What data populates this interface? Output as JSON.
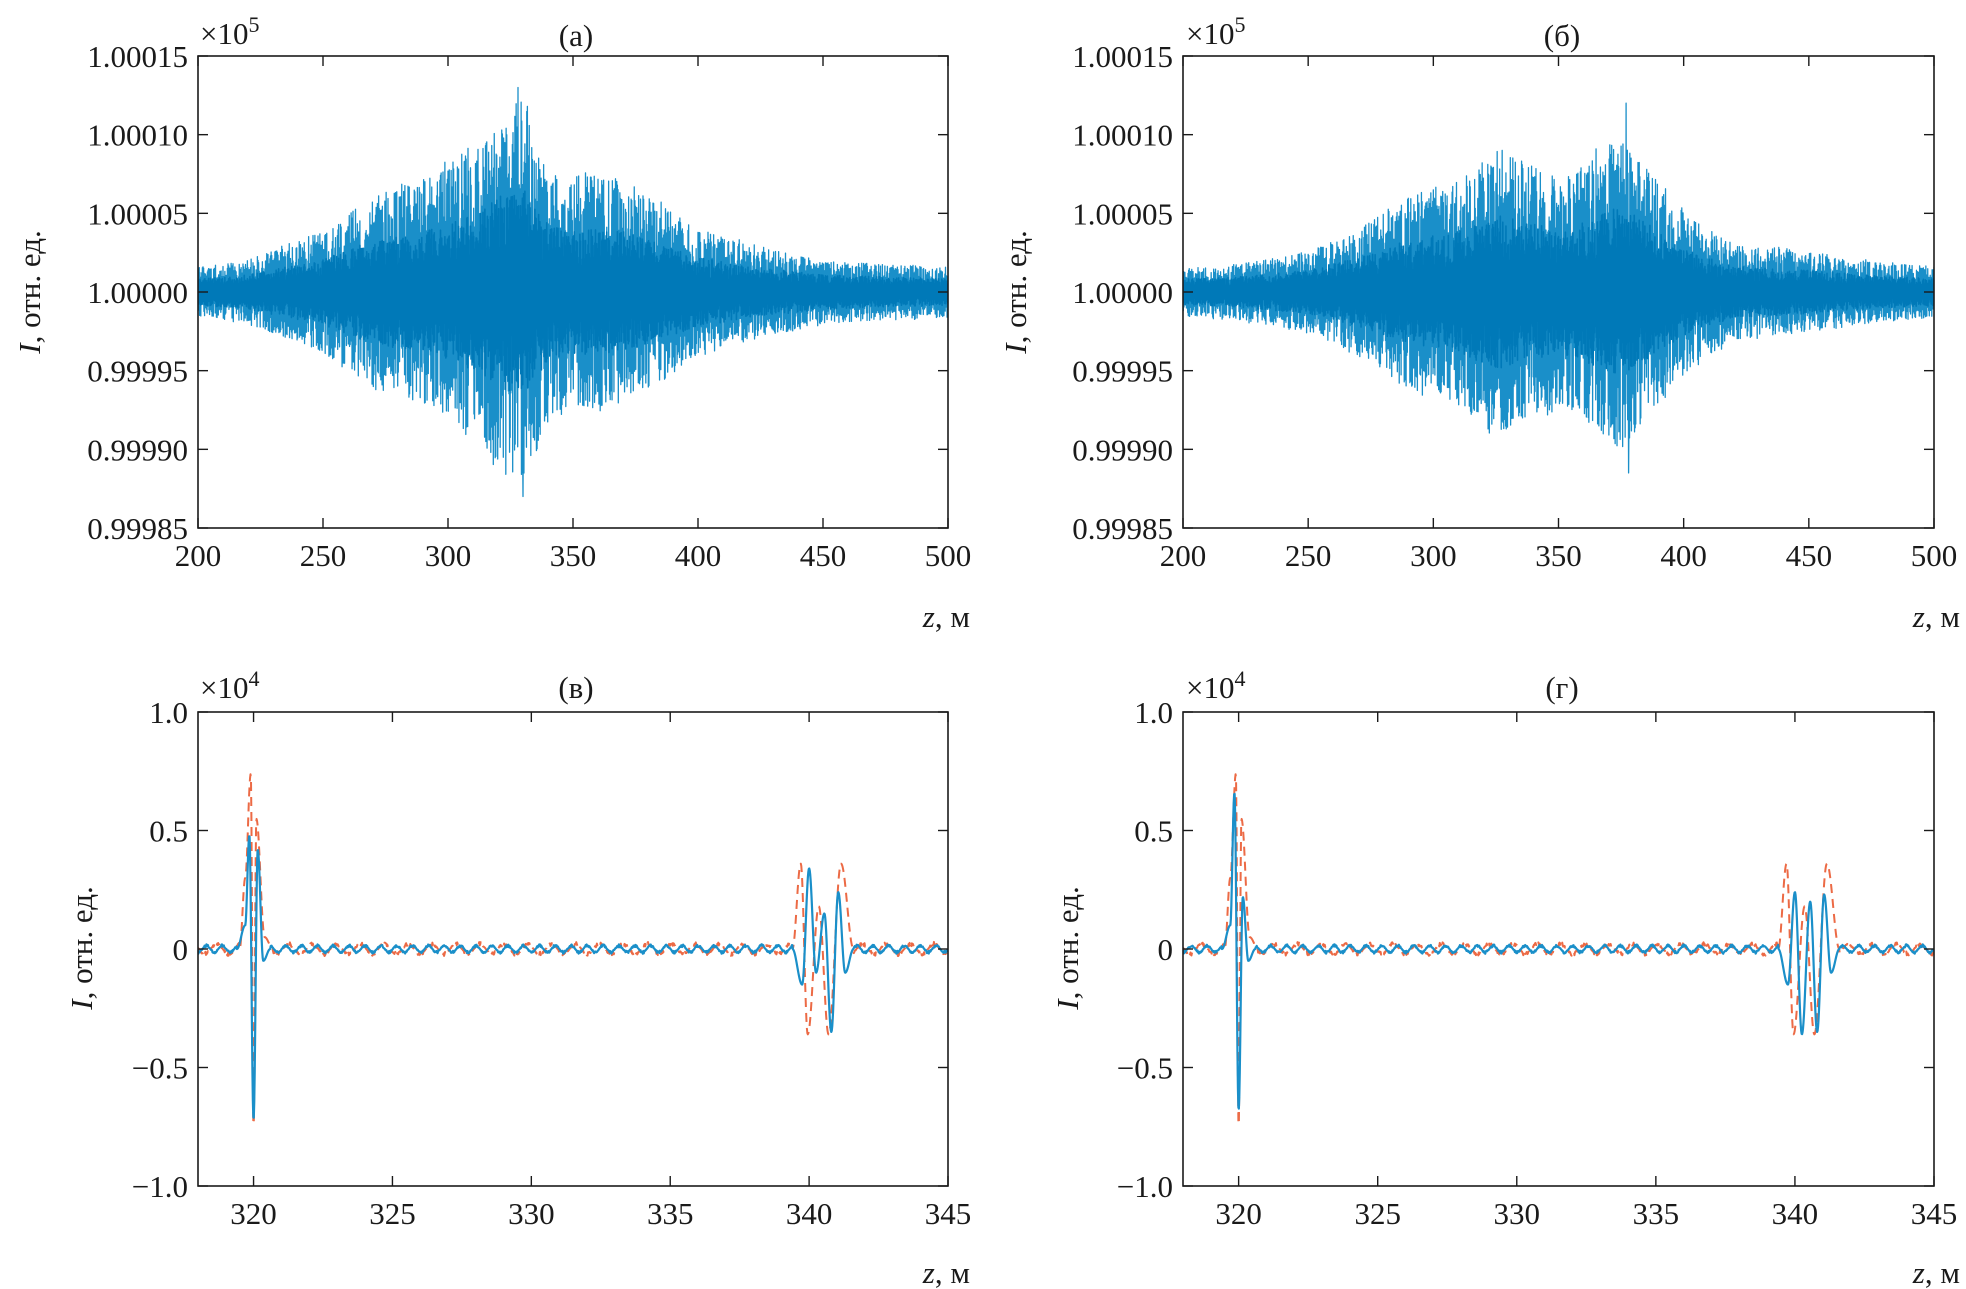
{
  "colors": {
    "signal": "#1a8fc9",
    "signal_dense": "#0079b8",
    "envelope": "#ec6a45",
    "axis": "#1a1a1a"
  },
  "chart_data": [
    {
      "panel": "a",
      "type": "line",
      "title": "(а)",
      "xlabel_var": "z",
      "xlabel_unit": ", м",
      "ylabel_var": "I",
      "ylabel_unit": ", отн. ед.",
      "multiplier_base": "×10",
      "multiplier_exp": "5",
      "xlim": [
        200,
        500
      ],
      "ylim": [
        0.99985,
        1.00015
      ],
      "x_ticks": [
        200,
        250,
        300,
        350,
        400,
        450,
        500
      ],
      "x_tick_labels": [
        "200",
        "250",
        "300",
        "350",
        "400",
        "450",
        "500"
      ],
      "y_ticks": [
        0.99985,
        0.9999,
        0.99995,
        1.0,
        1.00005,
        1.0001,
        1.00015
      ],
      "y_tick_labels": [
        "0.99985",
        "0.99990",
        "0.99995",
        "1.00000",
        "1.00005",
        "1.00010",
        "1.00015"
      ],
      "series": [
        {
          "name": "intensity",
          "style": "solid",
          "color": "#1a8fc9",
          "description": "dense noise-like oscillation around 1.00000, envelope peaks near z = 330",
          "baseline": 1.0,
          "envelope": {
            "z": [
              200,
              220,
              250,
              270,
              290,
              310,
              320,
              330,
              340,
              350,
              360,
              370,
              380,
              400,
              420,
              450,
              480,
              500
            ],
            "amplitude": [
              1.5e-05,
              2e-05,
              3.8e-05,
              6e-05,
              7e-05,
              9e-05,
              0.00011,
              0.00012,
              8e-05,
              7e-05,
              7.5e-05,
              7e-05,
              6e-05,
              4e-05,
              3e-05,
              2e-05,
              1.7e-05,
              1.6e-05
            ]
          },
          "peaks": {
            "max": {
              "z": 328,
              "value": 1.00013
            },
            "min": {
              "z": 330,
              "value": 0.99987
            }
          }
        }
      ]
    },
    {
      "panel": "b",
      "type": "line",
      "title": "(б)",
      "xlabel_var": "z",
      "xlabel_unit": ", м",
      "ylabel_var": "I",
      "ylabel_unit": ", отн. ед.",
      "multiplier_base": "×10",
      "multiplier_exp": "5",
      "xlim": [
        200,
        500
      ],
      "ylim": [
        0.99985,
        1.00015
      ],
      "x_ticks": [
        200,
        250,
        300,
        350,
        400,
        450,
        500
      ],
      "x_tick_labels": [
        "200",
        "250",
        "300",
        "350",
        "400",
        "450",
        "500"
      ],
      "y_ticks": [
        0.99985,
        0.9999,
        0.99995,
        1.0,
        1.00005,
        1.0001,
        1.00015
      ],
      "y_tick_labels": [
        "0.99985",
        "0.99990",
        "0.99995",
        "1.00000",
        "1.00005",
        "1.00010",
        "1.00015"
      ],
      "series": [
        {
          "name": "intensity",
          "style": "solid",
          "color": "#1a8fc9",
          "description": "dense noise-like oscillation around 1.00000, two envelope maxima near z = 325 and z = 375",
          "baseline": 1.0,
          "envelope": {
            "z": [
              200,
              220,
              250,
              270,
              290,
              310,
              325,
              340,
              350,
              360,
              375,
              390,
              400,
              420,
              450,
              480,
              500
            ],
            "amplitude": [
              1.5e-05,
              1.7e-05,
              2.5e-05,
              4e-05,
              6e-05,
              7e-05,
              9e-05,
              8e-05,
              7e-05,
              8e-05,
              0.0001,
              7e-05,
              5e-05,
              3e-05,
              2.5e-05,
              1.8e-05,
              1.6e-05
            ]
          },
          "peaks": {
            "max": {
              "z": 377,
              "value": 1.00012
            },
            "min": {
              "z": 378,
              "value": 0.999885
            }
          }
        }
      ]
    },
    {
      "panel": "c",
      "type": "line",
      "title": "(в)",
      "xlabel_var": "z",
      "xlabel_unit": ", м",
      "ylabel_var": "I",
      "ylabel_unit": ", отн. ед.",
      "multiplier_base": "×10",
      "multiplier_exp": "4",
      "xlim": [
        318,
        345
      ],
      "ylim": [
        -1.0,
        1.0
      ],
      "x_ticks": [
        320,
        325,
        330,
        335,
        340,
        345
      ],
      "x_tick_labels": [
        "320",
        "325",
        "330",
        "335",
        "340",
        "345"
      ],
      "y_ticks": [
        -1.0,
        -0.5,
        0,
        0.5,
        1.0
      ],
      "y_tick_labels": [
        "−1.0",
        "−0.5",
        "0",
        "0.5",
        "1.0"
      ],
      "series": [
        {
          "name": "signal",
          "style": "solid",
          "color": "#1a8fc9",
          "packets": [
            {
              "z": [
                319.4,
                319.7,
                319.85,
                320.0,
                320.15,
                320.35,
                320.6
              ],
              "value": [
                0,
                0.1,
                0.48,
                -0.72,
                0.42,
                -0.05,
                0
              ]
            },
            {
              "z": [
                339.4,
                339.75,
                340.0,
                340.25,
                340.55,
                340.8,
                341.05,
                341.3,
                341.6
              ],
              "value": [
                0,
                -0.15,
                0.34,
                -0.1,
                0.15,
                -0.35,
                0.24,
                -0.1,
                0
              ]
            }
          ],
          "background_amplitude": 0.02
        },
        {
          "name": "envelope",
          "style": "dashed",
          "color": "#ec6a45",
          "packets": [
            {
              "z": [
                319.5,
                319.7,
                319.9,
                320.0,
                320.1,
                320.4,
                320.7
              ],
              "value": [
                0,
                0.3,
                0.74,
                -0.76,
                0.55,
                0.05,
                0
              ]
            },
            {
              "z": [
                339.4,
                339.7,
                339.95,
                340.35,
                340.7,
                341.15,
                341.6
              ],
              "value": [
                0,
                0.36,
                -0.36,
                0.18,
                -0.36,
                0.36,
                0
              ]
            }
          ],
          "background_amplitude": 0.03
        }
      ]
    },
    {
      "panel": "d",
      "type": "line",
      "title": "(г)",
      "xlabel_var": "z",
      "xlabel_unit": ", м",
      "ylabel_var": "I",
      "ylabel_unit": ", отн. ед.",
      "multiplier_base": "×10",
      "multiplier_exp": "4",
      "xlim": [
        318,
        345
      ],
      "ylim": [
        -1.0,
        1.0
      ],
      "x_ticks": [
        320,
        325,
        330,
        335,
        340,
        345
      ],
      "x_tick_labels": [
        "320",
        "325",
        "330",
        "335",
        "340",
        "345"
      ],
      "y_ticks": [
        -1.0,
        -0.5,
        0,
        0.5,
        1.0
      ],
      "y_tick_labels": [
        "−1.0",
        "−0.5",
        "0",
        "0.5",
        "1.0"
      ],
      "series": [
        {
          "name": "signal",
          "style": "solid",
          "color": "#1a8fc9",
          "packets": [
            {
              "z": [
                319.4,
                319.7,
                319.85,
                320.0,
                320.15,
                320.35,
                320.6
              ],
              "value": [
                0,
                0.1,
                0.66,
                -0.68,
                0.22,
                -0.05,
                0
              ]
            },
            {
              "z": [
                339.4,
                339.75,
                340.0,
                340.25,
                340.55,
                340.8,
                341.05,
                341.3,
                341.6
              ],
              "value": [
                0,
                -0.15,
                0.24,
                -0.36,
                0.2,
                -0.35,
                0.23,
                -0.1,
                0
              ]
            }
          ],
          "background_amplitude": 0.02
        },
        {
          "name": "envelope",
          "style": "dashed",
          "color": "#ec6a45",
          "packets": [
            {
              "z": [
                319.5,
                319.7,
                319.9,
                320.0,
                320.1,
                320.4,
                320.7
              ],
              "value": [
                0,
                0.3,
                0.74,
                -0.76,
                0.55,
                0.05,
                0
              ]
            },
            {
              "z": [
                339.4,
                339.7,
                339.95,
                340.35,
                340.7,
                341.15,
                341.6
              ],
              "value": [
                0,
                0.36,
                -0.36,
                0.18,
                -0.36,
                0.36,
                0
              ]
            }
          ],
          "background_amplitude": 0.03
        }
      ]
    }
  ]
}
